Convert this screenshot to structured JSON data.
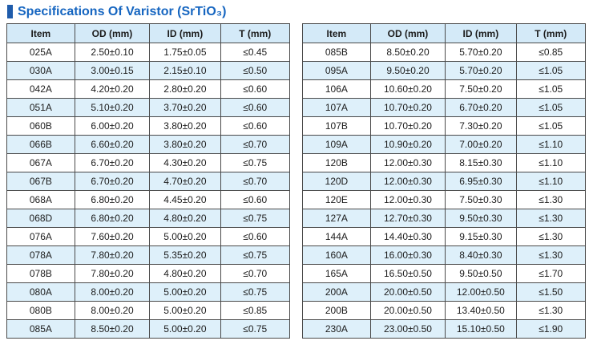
{
  "title": {
    "text": "Specifications Of Varistor (SrTiO₃)"
  },
  "colors": {
    "accent": "#1565c0",
    "title_bar": "#1f5cab",
    "header_bg": "#d4eaf8",
    "alt_row_bg": "#def0fa",
    "border": "#4a4a4a",
    "text": "#1c1c1c"
  },
  "tables": [
    {
      "name": "left",
      "headers": [
        "Item",
        "OD (mm)",
        "ID (mm)",
        "T (mm)"
      ],
      "rows": [
        [
          "025A",
          "2.50±0.10",
          "1.75±0.05",
          "≤0.45"
        ],
        [
          "030A",
          "3.00±0.15",
          "2.15±0.10",
          "≤0.50"
        ],
        [
          "042A",
          "4.20±0.20",
          "2.80±0.20",
          "≤0.60"
        ],
        [
          "051A",
          "5.10±0.20",
          "3.70±0.20",
          "≤0.60"
        ],
        [
          "060B",
          "6.00±0.20",
          "3.80±0.20",
          "≤0.60"
        ],
        [
          "066B",
          "6.60±0.20",
          "3.80±0.20",
          "≤0.70"
        ],
        [
          "067A",
          "6.70±0.20",
          "4.30±0.20",
          "≤0.75"
        ],
        [
          "067B",
          "6.70±0.20",
          "4.70±0.20",
          "≤0.70"
        ],
        [
          "068A",
          "6.80±0.20",
          "4.45±0.20",
          "≤0.60"
        ],
        [
          "068D",
          "6.80±0.20",
          "4.80±0.20",
          "≤0.75"
        ],
        [
          "076A",
          "7.60±0.20",
          "5.00±0.20",
          "≤0.60"
        ],
        [
          "078A",
          "7.80±0.20",
          "5.35±0.20",
          "≤0.75"
        ],
        [
          "078B",
          "7.80±0.20",
          "4.80±0.20",
          "≤0.70"
        ],
        [
          "080A",
          "8.00±0.20",
          "5.00±0.20",
          "≤0.75"
        ],
        [
          "080B",
          "8.00±0.20",
          "5.00±0.20",
          "≤0.85"
        ],
        [
          "085A",
          "8.50±0.20",
          "5.00±0.20",
          "≤0.75"
        ]
      ]
    },
    {
      "name": "right",
      "headers": [
        "Item",
        "OD (mm)",
        "ID (mm)",
        "T (mm)"
      ],
      "rows": [
        [
          "085B",
          "8.50±0.20",
          "5.70±0.20",
          "≤0.85"
        ],
        [
          "095A",
          "9.50±0.20",
          "5.70±0.20",
          "≤1.05"
        ],
        [
          "106A",
          "10.60±0.20",
          "7.50±0.20",
          "≤1.05"
        ],
        [
          "107A",
          "10.70±0.20",
          "6.70±0.20",
          "≤1.05"
        ],
        [
          "107B",
          "10.70±0.20",
          "7.30±0.20",
          "≤1.05"
        ],
        [
          "109A",
          "10.90±0.20",
          "7.00±0.20",
          "≤1.10"
        ],
        [
          "120B",
          "12.00±0.30",
          "8.15±0.30",
          "≤1.10"
        ],
        [
          "120D",
          "12.00±0.30",
          "6.95±0.30",
          "≤1.10"
        ],
        [
          "120E",
          "12.00±0.30",
          "7.50±0.30",
          "≤1.30"
        ],
        [
          "127A",
          "12.70±0.30",
          "9.50±0.30",
          "≤1.30"
        ],
        [
          "144A",
          "14.40±0.30",
          "9.15±0.30",
          "≤1.30"
        ],
        [
          "160A",
          "16.00±0.30",
          "8.40±0.30",
          "≤1.30"
        ],
        [
          "165A",
          "16.50±0.50",
          "9.50±0.50",
          "≤1.70"
        ],
        [
          "200A",
          "20.00±0.50",
          "12.00±0.50",
          "≤1.50"
        ],
        [
          "200B",
          "20.00±0.50",
          "13.40±0.50",
          "≤1.30"
        ],
        [
          "230A",
          "23.00±0.50",
          "15.10±0.50",
          "≤1.90"
        ]
      ]
    }
  ]
}
